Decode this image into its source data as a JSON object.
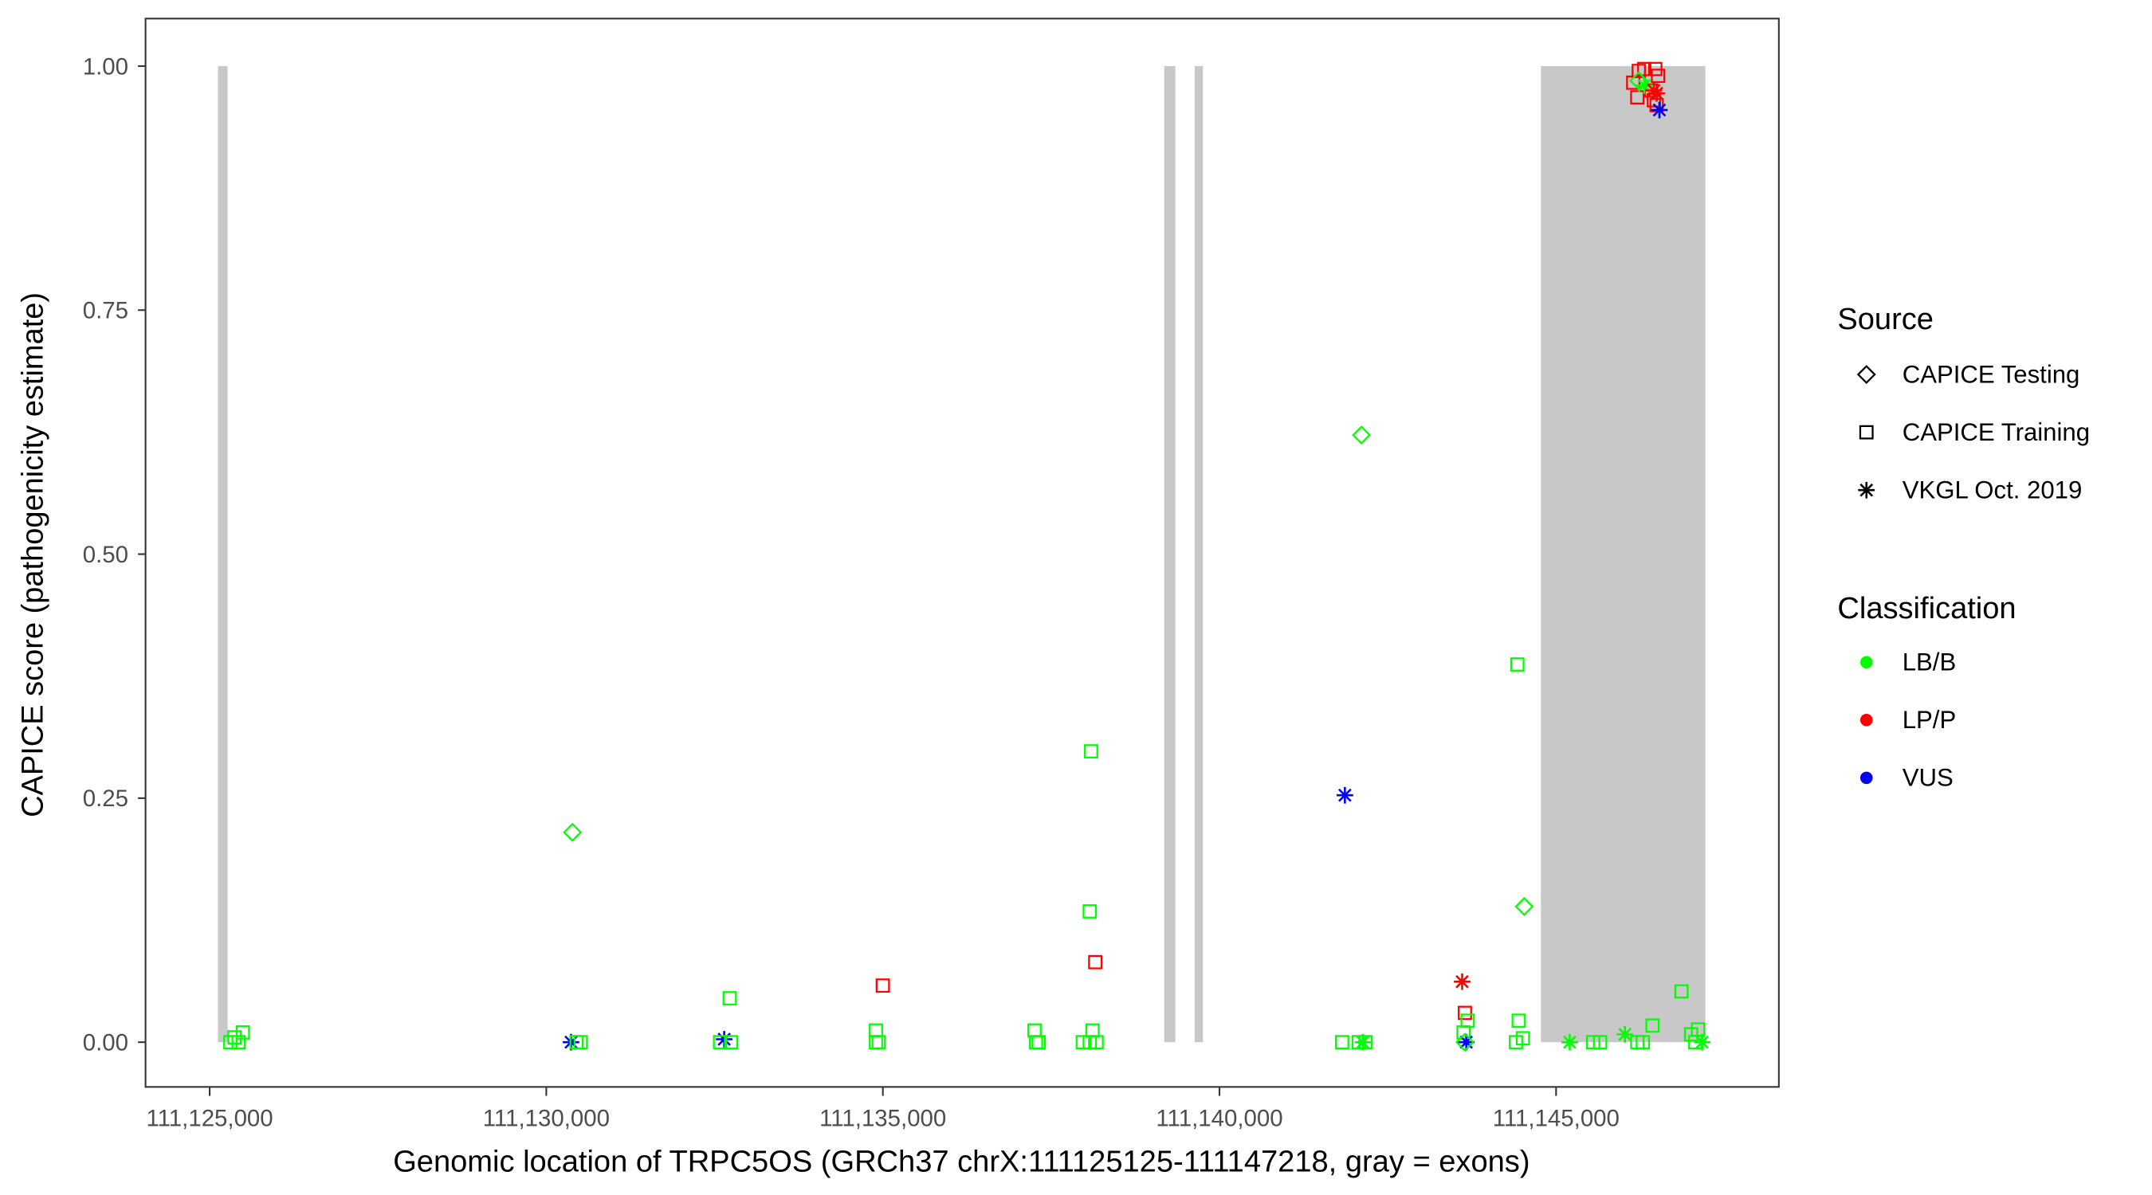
{
  "chart_data": {
    "type": "scatter",
    "xlabel": "Genomic location of TRPC5OS (GRCh37 chrX:111125125-111147218, gray = exons)",
    "ylabel": "CAPICE score (pathogenicity estimate)",
    "xlim": [
      111124080,
      111148380
    ],
    "ylim": [
      -0.045,
      1.045
    ],
    "xticks": [
      111125000,
      111130000,
      111135000,
      111140000,
      111145000
    ],
    "xtick_labels": [
      "111,125,000",
      "111,130,000",
      "111,135,000",
      "111,140,000",
      "111,145,000"
    ],
    "yticks": [
      0,
      0.25,
      0.5,
      0.75,
      1.0
    ],
    "ytick_labels": [
      "0.00",
      "0.25",
      "0.50",
      "0.75",
      "1.00"
    ],
    "grid": false,
    "exons": [
      [
        111125123,
        111125266
      ],
      [
        111139180,
        111139344
      ],
      [
        111139631,
        111139754
      ],
      [
        111144775,
        111147218
      ]
    ],
    "legend": {
      "placement": "right",
      "source_title": "Source",
      "sources": [
        {
          "key": "testing",
          "label": "CAPICE Testing",
          "shape": "diamond"
        },
        {
          "key": "training",
          "label": "CAPICE Training",
          "shape": "square"
        },
        {
          "key": "vkgl",
          "label": "VKGL Oct. 2019",
          "shape": "star"
        }
      ],
      "class_title": "Classification",
      "classes": [
        {
          "key": "LB",
          "label": "LB/B",
          "color": "#00ff00"
        },
        {
          "key": "LP",
          "label": "LP/P",
          "color": "#ff0000"
        },
        {
          "key": "VUS",
          "label": "VUS",
          "color": "#0000ff"
        }
      ]
    },
    "points_columns": [
      "position",
      "score",
      "source",
      "classification"
    ],
    "points": [
      [
        111125307,
        0,
        "training",
        "LB"
      ],
      [
        111125369,
        0.005,
        "training",
        "LB"
      ],
      [
        111125492,
        0.01,
        "training",
        "LB"
      ],
      [
        111125430,
        0,
        "training",
        "LB"
      ],
      [
        111130389,
        0.215,
        "testing",
        "LB"
      ],
      [
        111130368,
        0,
        "vkgl",
        "VUS"
      ],
      [
        111130450,
        0,
        "training",
        "LB"
      ],
      [
        111130512,
        0,
        "training",
        "LB"
      ],
      [
        111132643,
        0.003,
        "vkgl",
        "VUS"
      ],
      [
        111132582,
        0,
        "training",
        "LB"
      ],
      [
        111132746,
        0,
        "training",
        "LB"
      ],
      [
        111132725,
        0.045,
        "training",
        "LB"
      ],
      [
        111134999,
        0.058,
        "training",
        "LP"
      ],
      [
        111134897,
        0.012,
        "training",
        "LB"
      ],
      [
        111134897,
        0,
        "training",
        "LB"
      ],
      [
        111134938,
        0,
        "training",
        "LB"
      ],
      [
        111137253,
        0.012,
        "training",
        "LB"
      ],
      [
        111137274,
        0,
        "training",
        "LB"
      ],
      [
        111137315,
        0,
        "training",
        "LB"
      ],
      [
        111138093,
        0.298,
        "training",
        "LB"
      ],
      [
        111138073,
        0.134,
        "training",
        "LB"
      ],
      [
        111138155,
        0.082,
        "training",
        "LP"
      ],
      [
        111138114,
        0.012,
        "training",
        "LB"
      ],
      [
        111137970,
        0,
        "training",
        "LB"
      ],
      [
        111138073,
        0,
        "training",
        "LB"
      ],
      [
        111138175,
        0,
        "training",
        "LB"
      ],
      [
        111142109,
        0.622,
        "testing",
        "LB"
      ],
      [
        111141863,
        0.253,
        "vkgl",
        "VUS"
      ],
      [
        111141822,
        0,
        "training",
        "LB"
      ],
      [
        111142068,
        0,
        "training",
        "LB"
      ],
      [
        111142130,
        0,
        "vkgl",
        "LB"
      ],
      [
        111142171,
        0,
        "training",
        "LB"
      ],
      [
        111143605,
        0.062,
        "vkgl",
        "LP"
      ],
      [
        111143646,
        0.03,
        "training",
        "LP"
      ],
      [
        111143687,
        0.022,
        "training",
        "LB"
      ],
      [
        111143626,
        0.01,
        "training",
        "LB"
      ],
      [
        111143666,
        0,
        "vkgl",
        "VUS"
      ],
      [
        111143646,
        0,
        "testing",
        "LB"
      ],
      [
        111144425,
        0.387,
        "training",
        "LB"
      ],
      [
        111144527,
        0.139,
        "testing",
        "LB"
      ],
      [
        111144445,
        0.022,
        "training",
        "LB"
      ],
      [
        111144507,
        0.004,
        "training",
        "LB"
      ],
      [
        111144404,
        0,
        "training",
        "LB"
      ],
      [
        111145203,
        0,
        "vkgl",
        "LB"
      ],
      [
        111145551,
        0,
        "training",
        "LB"
      ],
      [
        111145654,
        0,
        "training",
        "LB"
      ],
      [
        111146023,
        0.008,
        "vkgl",
        "LB"
      ],
      [
        111146207,
        0,
        "training",
        "LB"
      ],
      [
        111146289,
        0,
        "training",
        "LB"
      ],
      [
        111146433,
        0.017,
        "training",
        "LB"
      ],
      [
        111146863,
        0.052,
        "training",
        "LB"
      ],
      [
        111147006,
        0.008,
        "training",
        "LB"
      ],
      [
        111147109,
        0.013,
        "training",
        "LB"
      ],
      [
        111147068,
        0,
        "training",
        "LB"
      ],
      [
        111147170,
        0,
        "vkgl",
        "LB"
      ],
      [
        111146146,
        0.983,
        "training",
        "LP"
      ],
      [
        111146228,
        0.995,
        "training",
        "LP"
      ],
      [
        111146310,
        0.997,
        "training",
        "LP"
      ],
      [
        111146474,
        0.997,
        "training",
        "LP"
      ],
      [
        111146515,
        0.99,
        "training",
        "LP"
      ],
      [
        111146207,
        0.968,
        "training",
        "LP"
      ],
      [
        111146412,
        0.975,
        "training",
        "LP"
      ],
      [
        111146453,
        0.965,
        "training",
        "LP"
      ],
      [
        111146494,
        0.96,
        "training",
        "LP"
      ],
      [
        111146228,
        0.985,
        "testing",
        "LB"
      ],
      [
        111146310,
        0.98,
        "vkgl",
        "LB"
      ],
      [
        111146453,
        0.975,
        "vkgl",
        "LP"
      ],
      [
        111146494,
        0.972,
        "vkgl",
        "LP"
      ],
      [
        111146535,
        0.955,
        "vkgl",
        "VUS"
      ]
    ]
  }
}
